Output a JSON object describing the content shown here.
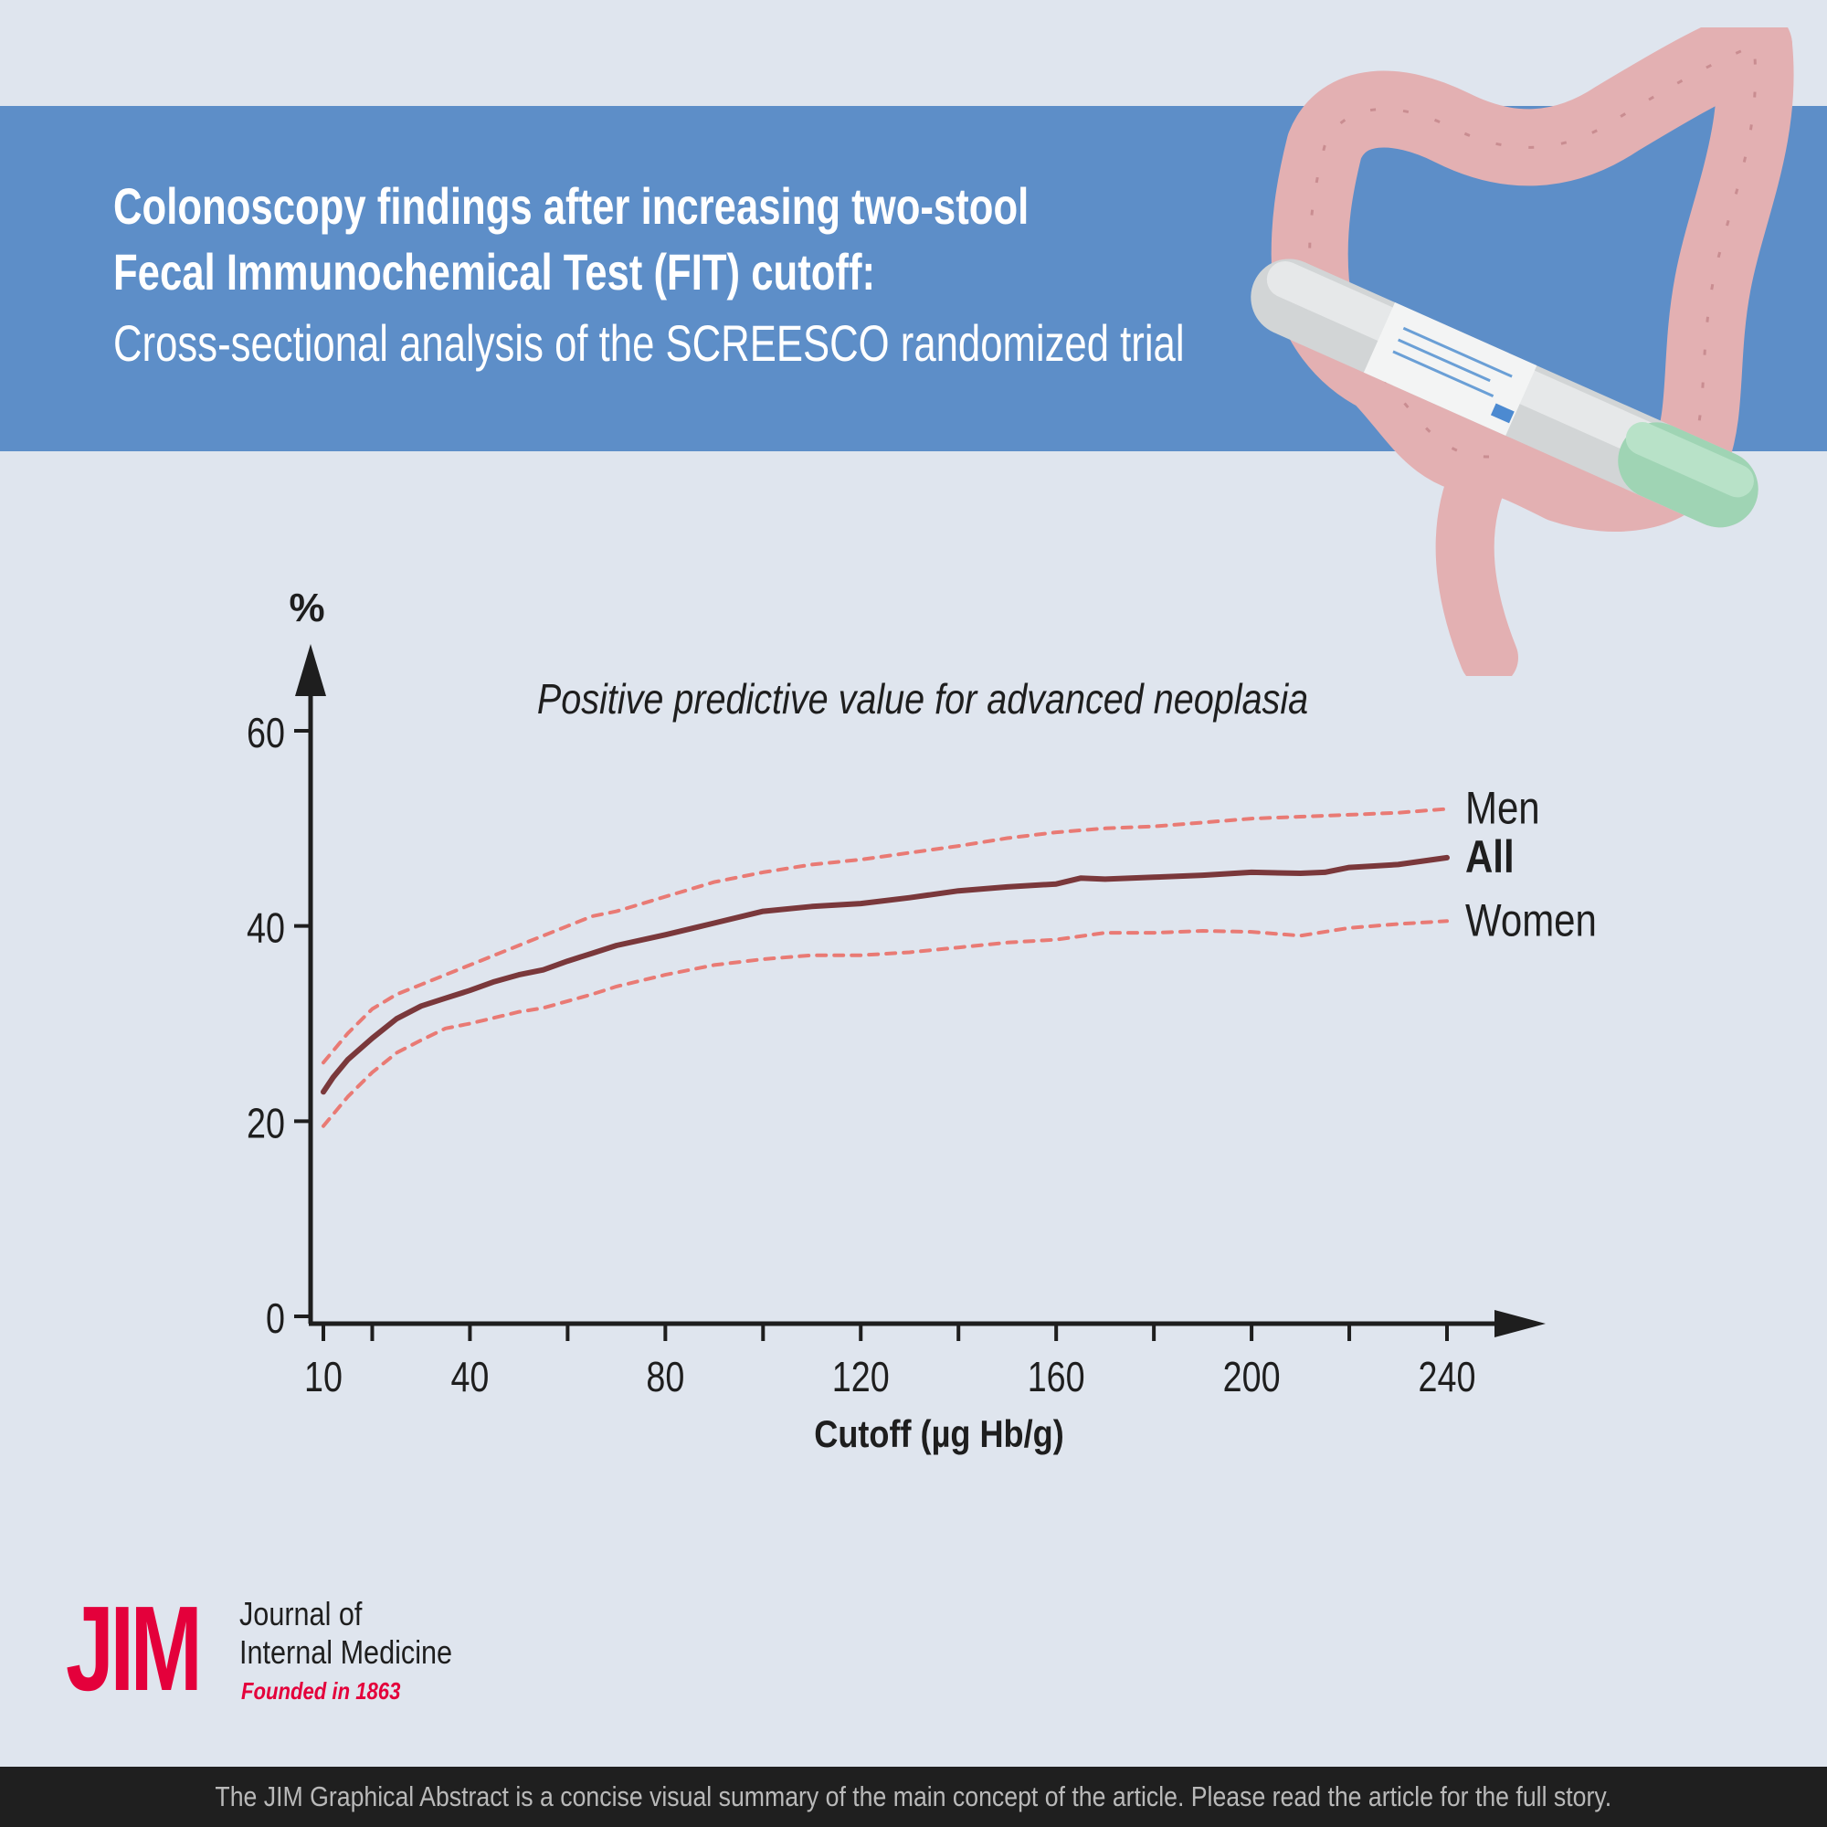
{
  "header": {
    "title_line1": "Colonoscopy findings after increasing two-stool",
    "title_line2": "Fecal Immunochemical Test (FIT) cutoff:",
    "subtitle": "Cross-sectional analysis of the SCREESCO randomized trial"
  },
  "illustration": {
    "icons": [
      "colon-icon",
      "fit-test-kit-icon"
    ]
  },
  "chart_data": {
    "type": "line",
    "title": "Positive predictive value for advanced neoplasia",
    "xlabel": "Cutoff (µg Hb/g)",
    "ylabel": "%",
    "x_ticks": [
      10,
      40,
      80,
      120,
      160,
      200,
      240
    ],
    "y_ticks": [
      0,
      20,
      40,
      60
    ],
    "xlim": [
      10,
      240
    ],
    "ylim": [
      0,
      60
    ],
    "grid": false,
    "legend": "end-of-line labels",
    "series": [
      {
        "name": "Men",
        "style": "dashed",
        "color": "#e97a74",
        "x": [
          10,
          15,
          20,
          25,
          30,
          35,
          40,
          45,
          50,
          55,
          60,
          65,
          70,
          80,
          90,
          100,
          110,
          120,
          130,
          140,
          150,
          160,
          170,
          180,
          190,
          200,
          210,
          220,
          230,
          240
        ],
        "y": [
          26,
          29,
          31.5,
          33,
          34,
          35,
          36,
          37,
          38,
          39,
          40,
          41,
          41.5,
          43,
          44.5,
          45.5,
          46.3,
          46.8,
          47.5,
          48.2,
          49,
          49.6,
          50,
          50.2,
          50.6,
          51,
          51.2,
          51.4,
          51.6,
          52
        ]
      },
      {
        "name": "All",
        "style": "solid",
        "color": "#7a383b",
        "x": [
          10,
          12,
          15,
          20,
          25,
          30,
          35,
          40,
          45,
          50,
          55,
          60,
          65,
          70,
          80,
          90,
          100,
          110,
          120,
          130,
          140,
          150,
          160,
          165,
          170,
          180,
          190,
          200,
          210,
          215,
          220,
          230,
          240
        ],
        "y": [
          23,
          24.5,
          26.3,
          28.5,
          30.5,
          31.8,
          32.6,
          33.4,
          34.3,
          35,
          35.5,
          36.4,
          37.2,
          38,
          39.1,
          40.3,
          41.5,
          42,
          42.3,
          42.9,
          43.6,
          44,
          44.3,
          44.9,
          44.8,
          45,
          45.2,
          45.5,
          45.4,
          45.5,
          46,
          46.3,
          47
        ]
      },
      {
        "name": "Women",
        "style": "dashed",
        "color": "#e97a74",
        "x": [
          10,
          15,
          20,
          25,
          30,
          35,
          40,
          45,
          50,
          55,
          60,
          65,
          70,
          80,
          90,
          100,
          110,
          120,
          130,
          140,
          150,
          160,
          170,
          180,
          190,
          200,
          210,
          220,
          230,
          240
        ],
        "y": [
          19.5,
          22.5,
          25,
          27,
          28.3,
          29.5,
          30,
          30.6,
          31.2,
          31.6,
          32.3,
          33,
          33.8,
          35,
          36,
          36.6,
          37,
          37,
          37.3,
          37.8,
          38.3,
          38.6,
          39.3,
          39.3,
          39.5,
          39.4,
          39,
          39.8,
          40.2,
          40.5
        ]
      }
    ]
  },
  "logo": {
    "abbr": "JIM",
    "name_line1": "Journal of",
    "name_line2": "Internal Medicine",
    "founded": "Founded in 1863"
  },
  "footer": {
    "text": "The JIM Graphical Abstract is a concise visual summary of the main concept of the article. Please read the article for the full story."
  }
}
